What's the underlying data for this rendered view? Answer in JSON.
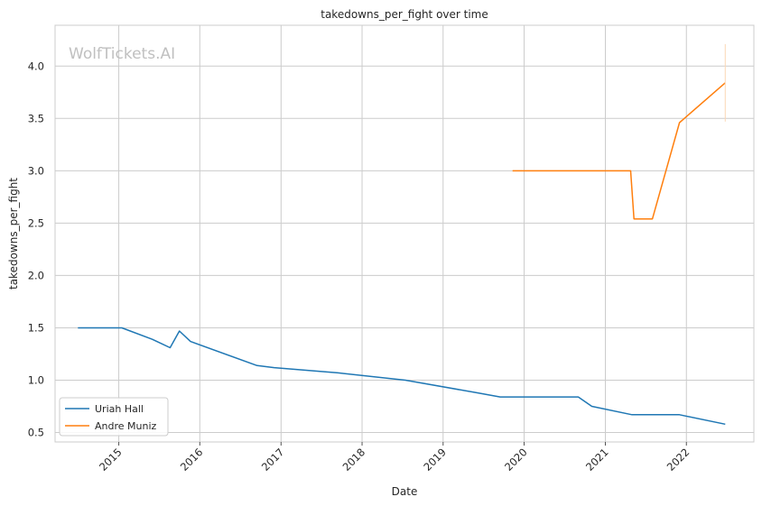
{
  "chart_data": {
    "type": "line",
    "title": "takedowns_per_fight over time",
    "xlabel": "Date",
    "ylabel": "takedowns_per_fight",
    "watermark": "WolfTickets.AI",
    "xlim": [
      "2014-03-20",
      "2022-11-01"
    ],
    "ylim": [
      0.41,
      4.39
    ],
    "x_ticks": [
      "2015",
      "2016",
      "2017",
      "2018",
      "2019",
      "2020",
      "2021",
      "2022"
    ],
    "y_ticks": [
      "0.5",
      "1.0",
      "1.5",
      "2.0",
      "2.5",
      "3.0",
      "3.5",
      "4.0"
    ],
    "grid": true,
    "legend_position": "lower-left",
    "colors": {
      "Uriah Hall": "#1f77b4",
      "Andre Muniz": "#ff7f0e",
      "grid": "#cccccc",
      "spine": "#cccccc"
    },
    "series": [
      {
        "name": "Uriah Hall",
        "x": [
          "2014-07-01",
          "2015-01-15",
          "2015-06-01",
          "2015-08-20",
          "2015-10-01",
          "2015-11-20",
          "2016-09-15",
          "2016-12-01",
          "2017-09-15",
          "2018-07-15",
          "2019-06-01",
          "2019-09-15",
          "2020-09-01",
          "2020-11-01",
          "2021-05-01",
          "2021-12-01",
          "2022-06-25"
        ],
        "y": [
          1.5,
          1.5,
          1.39,
          1.31,
          1.47,
          1.37,
          1.14,
          1.12,
          1.07,
          1.0,
          0.88,
          0.84,
          0.84,
          0.75,
          0.67,
          0.67,
          0.58
        ]
      },
      {
        "name": "Andre Muniz",
        "x": [
          "2019-11-10",
          "2021-04-25",
          "2021-05-10",
          "2021-08-01",
          "2021-12-01",
          "2022-06-25"
        ],
        "y": [
          3.0,
          3.0,
          2.54,
          2.54,
          3.46,
          3.84
        ]
      }
    ]
  }
}
